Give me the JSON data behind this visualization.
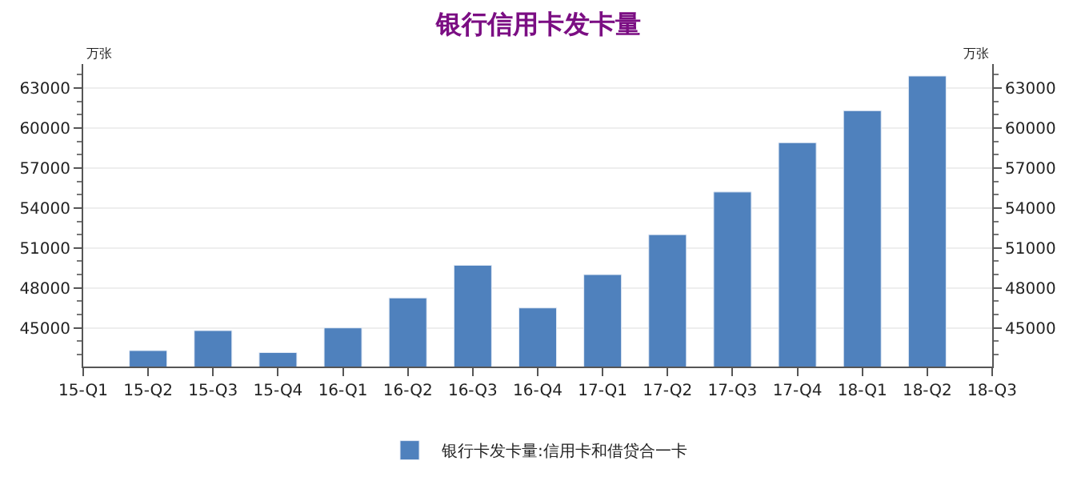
{
  "chart_data": {
    "type": "bar",
    "title": "银行信用卡发卡量",
    "ylabel": "万张",
    "y2label": "万张",
    "categories": [
      "15-Q1",
      "15-Q2",
      "15-Q3",
      "15-Q4",
      "16-Q1",
      "16-Q2",
      "16-Q3",
      "16-Q4",
      "17-Q1",
      "17-Q2",
      "17-Q3",
      "17-Q4",
      "18-Q1",
      "18-Q2",
      "18-Q3"
    ],
    "series": [
      {
        "name": "银行卡发卡量:信用卡和借贷合一卡",
        "color": "#4f81bd",
        "values": [
          null,
          43300,
          44800,
          43150,
          45000,
          47250,
          49700,
          46500,
          49000,
          52000,
          55200,
          58900,
          61300,
          63900,
          null
        ]
      }
    ],
    "ylim": [
      42100,
      64800
    ],
    "yticks": [
      45000,
      48000,
      51000,
      54000,
      57000,
      60000,
      63000
    ],
    "y2lim": [
      42100,
      64800
    ],
    "y2ticks": [
      45000,
      48000,
      51000,
      54000,
      57000,
      60000,
      63000
    ],
    "grid": "y",
    "legend": "bottom"
  }
}
